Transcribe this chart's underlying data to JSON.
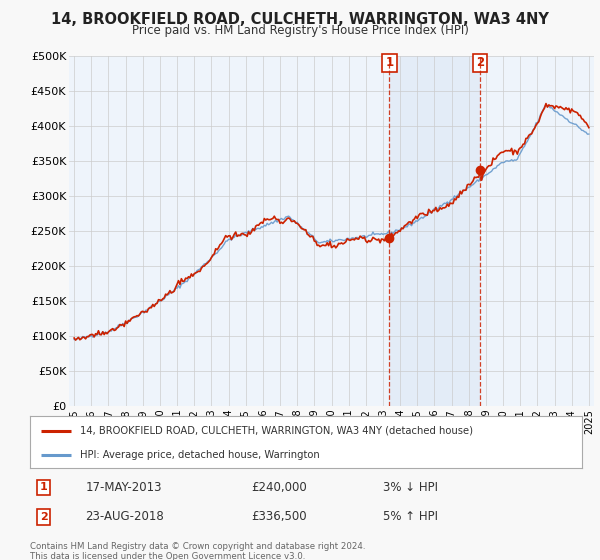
{
  "title": "14, BROOKFIELD ROAD, CULCHETH, WARRINGTON, WA3 4NY",
  "subtitle": "Price paid vs. HM Land Registry's House Price Index (HPI)",
  "bg_color": "#f8f8f8",
  "plot_bg_color": "#dce8f5",
  "plot_bg_color2": "#eef4fb",
  "ylabel_ticks": [
    "£0",
    "£50K",
    "£100K",
    "£150K",
    "£200K",
    "£250K",
    "£300K",
    "£350K",
    "£400K",
    "£450K",
    "£500K"
  ],
  "ytick_values": [
    0,
    50000,
    100000,
    150000,
    200000,
    250000,
    300000,
    350000,
    400000,
    450000,
    500000
  ],
  "ylim": [
    0,
    500000
  ],
  "sale1_date_num": 2013.38,
  "sale1_price": 240000,
  "sale2_date_num": 2018.64,
  "sale2_price": 336500,
  "legend_line1": "14, BROOKFIELD ROAD, CULCHETH, WARRINGTON, WA3 4NY (detached house)",
  "legend_line2": "HPI: Average price, detached house, Warrington",
  "note1_date": "17-MAY-2013",
  "note1_price": "£240,000",
  "note1_pct": "3% ↓ HPI",
  "note2_date": "23-AUG-2018",
  "note2_price": "£336,500",
  "note2_pct": "5% ↑ HPI",
  "footer": "Contains HM Land Registry data © Crown copyright and database right 2024.\nThis data is licensed under the Open Government Licence v3.0.",
  "line_red_color": "#cc2200",
  "line_blue_color": "#6699cc",
  "marker_color": "#cc2200",
  "dashed_line_color": "#cc2200",
  "legend_border_color": "#aaaaaa",
  "grid_color": "#cccccc",
  "title_color": "#222222",
  "label_color": "#333333"
}
